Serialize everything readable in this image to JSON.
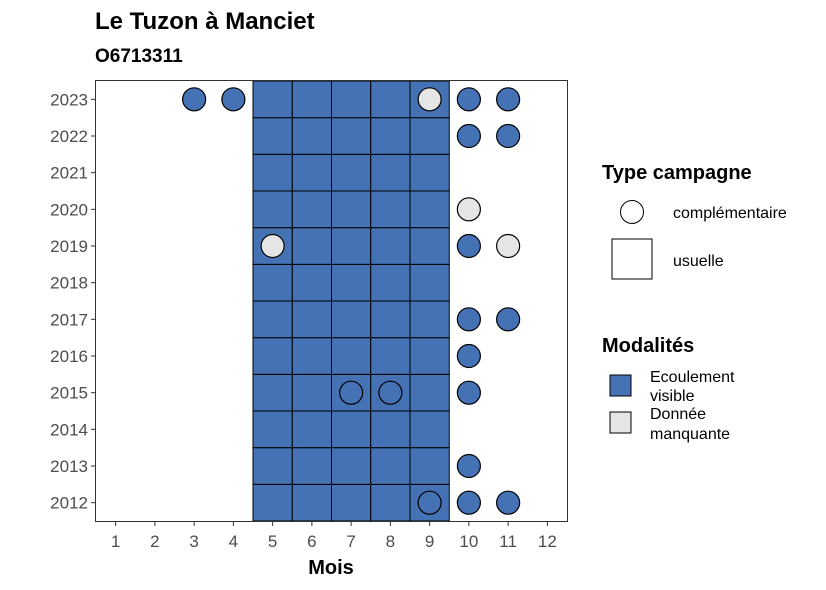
{
  "title": "Le Tuzon à Manciet",
  "subtitle": "O6713311",
  "colors": {
    "ecoulement_visible": "#4472b4",
    "donnee_manquante": "#e5e5e5",
    "usuelle_fill": "#ffffff",
    "outline": "#000000"
  },
  "chart_data": {
    "type": "heatmap",
    "title": "Le Tuzon à Manciet",
    "subtitle": "O6713311",
    "xlabel": "Mois",
    "ylabel": "",
    "x_ticks": [
      1,
      2,
      3,
      4,
      5,
      6,
      7,
      8,
      9,
      10,
      11,
      12
    ],
    "y_ticks": [
      2012,
      2013,
      2014,
      2015,
      2016,
      2017,
      2018,
      2019,
      2020,
      2021,
      2022,
      2023
    ],
    "xlim": [
      0.5,
      12.5
    ],
    "ylim": [
      2011.5,
      2023.5
    ],
    "grid": false,
    "usuelle_months": [
      5,
      6,
      7,
      8,
      9
    ],
    "usuelle_years": [
      2012,
      2013,
      2014,
      2015,
      2016,
      2017,
      2018,
      2019,
      2020,
      2021,
      2022,
      2023
    ],
    "usuelle_fill": "Ecoulement visible",
    "complementaire_points": [
      {
        "year": 2023,
        "month": 3,
        "modalite": "Ecoulement visible"
      },
      {
        "year": 2023,
        "month": 4,
        "modalite": "Ecoulement visible"
      },
      {
        "year": 2023,
        "month": 9,
        "modalite": "Donnée manquante"
      },
      {
        "year": 2023,
        "month": 10,
        "modalite": "Ecoulement visible"
      },
      {
        "year": 2023,
        "month": 11,
        "modalite": "Ecoulement visible"
      },
      {
        "year": 2022,
        "month": 10,
        "modalite": "Ecoulement visible"
      },
      {
        "year": 2022,
        "month": 11,
        "modalite": "Ecoulement visible"
      },
      {
        "year": 2020,
        "month": 10,
        "modalite": "Donnée manquante"
      },
      {
        "year": 2019,
        "month": 5,
        "modalite": "Donnée manquante"
      },
      {
        "year": 2019,
        "month": 10,
        "modalite": "Ecoulement visible"
      },
      {
        "year": 2019,
        "month": 11,
        "modalite": "Donnée manquante"
      },
      {
        "year": 2017,
        "month": 10,
        "modalite": "Ecoulement visible"
      },
      {
        "year": 2017,
        "month": 11,
        "modalite": "Ecoulement visible"
      },
      {
        "year": 2016,
        "month": 10,
        "modalite": "Ecoulement visible"
      },
      {
        "year": 2015,
        "month": 7,
        "modalite": "Ecoulement visible"
      },
      {
        "year": 2015,
        "month": 8,
        "modalite": "Ecoulement visible"
      },
      {
        "year": 2015,
        "month": 10,
        "modalite": "Ecoulement visible"
      },
      {
        "year": 2013,
        "month": 10,
        "modalite": "Ecoulement visible"
      },
      {
        "year": 2012,
        "month": 9,
        "modalite": "Ecoulement visible"
      },
      {
        "year": 2012,
        "month": 10,
        "modalite": "Ecoulement visible"
      },
      {
        "year": 2012,
        "month": 11,
        "modalite": "Ecoulement visible"
      }
    ],
    "legend": {
      "placement": "right",
      "type_title": "Type campagne",
      "type_items": [
        "complémentaire",
        "usuelle"
      ],
      "modalites_title": "Modalités",
      "modalites_items": [
        {
          "label_lines": [
            "Ecoulement",
            "visible"
          ],
          "key": "Ecoulement visible"
        },
        {
          "label_lines": [
            "Donnée",
            "manquante"
          ],
          "key": "Donnée manquante"
        }
      ]
    }
  }
}
